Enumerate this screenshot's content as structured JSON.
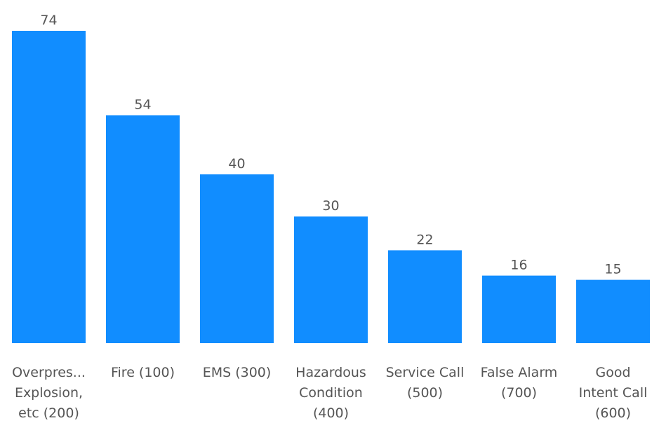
{
  "chart_data": {
    "type": "bar",
    "title": "",
    "xlabel": "",
    "ylabel": "",
    "categories": [
      [
        "Overpres...",
        "Explosion,",
        "etc (200)"
      ],
      [
        "Fire (100)"
      ],
      [
        "EMS (300)"
      ],
      [
        "Hazardous",
        "Condition",
        "(400)"
      ],
      [
        "Service Call",
        "(500)"
      ],
      [
        "False Alarm",
        "(700)"
      ],
      [
        "Good",
        "Intent Call",
        "(600)"
      ]
    ],
    "values": [
      74,
      54,
      40,
      30,
      22,
      16,
      15
    ],
    "data_labels": [
      "74",
      "54",
      "40",
      "30",
      "22",
      "16",
      "15"
    ],
    "ylim": [
      0,
      74
    ],
    "grid": false,
    "legend": "none",
    "bar_color": "#118dff"
  }
}
